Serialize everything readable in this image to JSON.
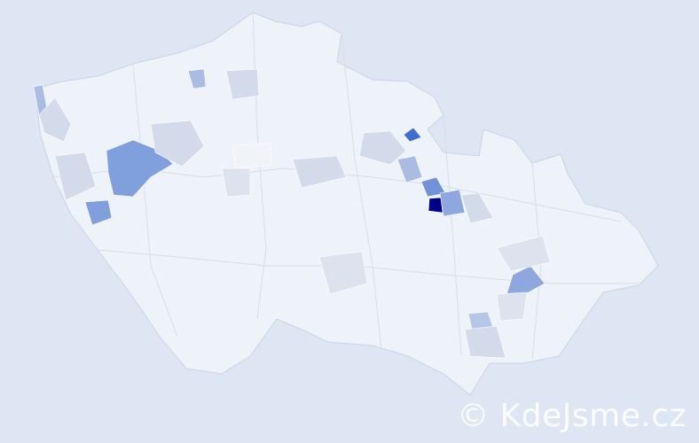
{
  "map": {
    "background_color": "#dde6f2",
    "base_fill": "#eef2f9",
    "border_color": "#c9d4e6",
    "scale_colors": [
      "#eef2f9",
      "#d3dbea",
      "#a9bde3",
      "#7f9fdd",
      "#3d6fd0",
      "#00008b"
    ],
    "highlight_regions": [
      {
        "name": "darkest",
        "color": "#00008b"
      },
      {
        "name": "strong",
        "color": "#3d6fd0"
      },
      {
        "name": "medium",
        "color": "#7f9fdd"
      },
      {
        "name": "light",
        "color": "#a9bde3"
      },
      {
        "name": "pale",
        "color": "#d3dbea"
      }
    ]
  },
  "watermark": {
    "text": "© KdeJsme.cz"
  }
}
